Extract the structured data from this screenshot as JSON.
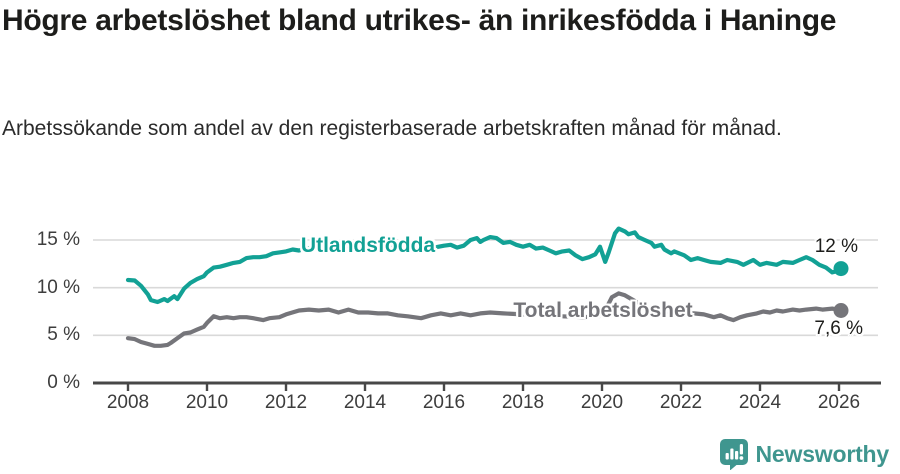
{
  "chart_data": {
    "type": "line",
    "title": "Högre arbetslöshet bland utrikes- än inrikesfödda i Haninge",
    "subtitle": "Arbetssökande som andel av den registerbaserade arbetskraften månad för månad.",
    "unit": "%",
    "grid": "horizontal",
    "legend_position": "inline-on-lines",
    "x_axis": {
      "ticks": [
        2008,
        2010,
        2012,
        2014,
        2016,
        2018,
        2020,
        2022,
        2024,
        2026
      ],
      "range": [
        2008,
        2026.3
      ]
    },
    "y_axis": {
      "ticks": [
        0,
        5,
        10,
        15
      ],
      "tick_suffix": " %",
      "range": [
        0,
        16.5
      ]
    },
    "axis_color": "#474747",
    "gridline_color": "#d9d9d9",
    "series": [
      {
        "name": "Utlandsfödda",
        "color": "#12a195",
        "end_label": "12 %",
        "last_value": 12.0,
        "points": [
          [
            2008.0,
            10.8
          ],
          [
            2008.17,
            10.75
          ],
          [
            2008.33,
            10.2
          ],
          [
            2008.5,
            9.3
          ],
          [
            2008.58,
            8.7
          ],
          [
            2008.75,
            8.5
          ],
          [
            2008.92,
            8.8
          ],
          [
            2009.0,
            8.6
          ],
          [
            2009.17,
            9.1
          ],
          [
            2009.25,
            8.8
          ],
          [
            2009.42,
            9.9
          ],
          [
            2009.58,
            10.5
          ],
          [
            2009.75,
            10.9
          ],
          [
            2009.92,
            11.2
          ],
          [
            2010.0,
            11.6
          ],
          [
            2010.17,
            12.1
          ],
          [
            2010.33,
            12.2
          ],
          [
            2010.5,
            12.4
          ],
          [
            2010.67,
            12.6
          ],
          [
            2010.83,
            12.7
          ],
          [
            2011.0,
            13.1
          ],
          [
            2011.17,
            13.2
          ],
          [
            2011.33,
            13.2
          ],
          [
            2011.5,
            13.3
          ],
          [
            2011.67,
            13.6
          ],
          [
            2011.83,
            13.7
          ],
          [
            2012.0,
            13.8
          ],
          [
            2012.17,
            14.0
          ],
          [
            2012.33,
            13.9
          ],
          [
            2012.5,
            14.1
          ],
          [
            2012.75,
            14.2
          ],
          [
            2013.0,
            14.4
          ],
          [
            2013.25,
            14.2
          ],
          [
            2013.5,
            14.4
          ],
          [
            2013.75,
            14.3
          ],
          [
            2014.0,
            14.5
          ],
          [
            2014.25,
            14.3
          ],
          [
            2014.5,
            14.4
          ],
          [
            2014.75,
            14.2
          ],
          [
            2015.0,
            14.3
          ],
          [
            2015.25,
            14.1
          ],
          [
            2015.5,
            14.3
          ],
          [
            2015.75,
            14.2
          ],
          [
            2016.0,
            14.4
          ],
          [
            2016.17,
            14.5
          ],
          [
            2016.33,
            14.2
          ],
          [
            2016.5,
            14.4
          ],
          [
            2016.67,
            15.0
          ],
          [
            2016.83,
            15.2
          ],
          [
            2016.92,
            14.8
          ],
          [
            2017.0,
            15.0
          ],
          [
            2017.17,
            15.3
          ],
          [
            2017.33,
            15.2
          ],
          [
            2017.5,
            14.7
          ],
          [
            2017.67,
            14.8
          ],
          [
            2017.83,
            14.5
          ],
          [
            2018.0,
            14.3
          ],
          [
            2018.17,
            14.5
          ],
          [
            2018.33,
            14.1
          ],
          [
            2018.5,
            14.2
          ],
          [
            2018.67,
            13.9
          ],
          [
            2018.83,
            13.6
          ],
          [
            2019.0,
            13.8
          ],
          [
            2019.17,
            13.9
          ],
          [
            2019.33,
            13.4
          ],
          [
            2019.5,
            13.0
          ],
          [
            2019.67,
            13.2
          ],
          [
            2019.83,
            13.5
          ],
          [
            2019.95,
            14.3
          ],
          [
            2020.08,
            12.7
          ],
          [
            2020.17,
            13.7
          ],
          [
            2020.33,
            15.7
          ],
          [
            2020.42,
            16.2
          ],
          [
            2020.58,
            15.9
          ],
          [
            2020.67,
            15.6
          ],
          [
            2020.83,
            15.8
          ],
          [
            2020.92,
            15.3
          ],
          [
            2021.08,
            15.0
          ],
          [
            2021.25,
            14.7
          ],
          [
            2021.33,
            14.3
          ],
          [
            2021.5,
            14.5
          ],
          [
            2021.58,
            14.0
          ],
          [
            2021.75,
            13.6
          ],
          [
            2021.83,
            13.8
          ],
          [
            2022.08,
            13.4
          ],
          [
            2022.25,
            12.9
          ],
          [
            2022.42,
            13.1
          ],
          [
            2022.58,
            12.9
          ],
          [
            2022.75,
            12.7
          ],
          [
            2023.0,
            12.6
          ],
          [
            2023.17,
            12.9
          ],
          [
            2023.42,
            12.7
          ],
          [
            2023.58,
            12.4
          ],
          [
            2023.83,
            12.9
          ],
          [
            2024.0,
            12.4
          ],
          [
            2024.17,
            12.6
          ],
          [
            2024.42,
            12.4
          ],
          [
            2024.58,
            12.7
          ],
          [
            2024.83,
            12.6
          ],
          [
            2025.0,
            12.9
          ],
          [
            2025.17,
            13.2
          ],
          [
            2025.33,
            12.9
          ],
          [
            2025.5,
            12.4
          ],
          [
            2025.67,
            12.1
          ],
          [
            2025.83,
            11.6
          ],
          [
            2025.92,
            11.7
          ],
          [
            2026.05,
            12.0
          ]
        ]
      },
      {
        "name": "Total arbetslöshet",
        "color": "#75757a",
        "end_label": "7,6 %",
        "last_value": 7.6,
        "points": [
          [
            2008.0,
            4.7
          ],
          [
            2008.17,
            4.6
          ],
          [
            2008.33,
            4.3
          ],
          [
            2008.5,
            4.1
          ],
          [
            2008.67,
            3.9
          ],
          [
            2008.83,
            3.9
          ],
          [
            2009.0,
            4.0
          ],
          [
            2009.08,
            4.2
          ],
          [
            2009.25,
            4.7
          ],
          [
            2009.42,
            5.2
          ],
          [
            2009.58,
            5.3
          ],
          [
            2009.75,
            5.6
          ],
          [
            2009.92,
            5.9
          ],
          [
            2010.0,
            6.3
          ],
          [
            2010.17,
            7.0
          ],
          [
            2010.33,
            6.8
          ],
          [
            2010.5,
            6.9
          ],
          [
            2010.67,
            6.8
          ],
          [
            2010.83,
            6.9
          ],
          [
            2011.0,
            6.9
          ],
          [
            2011.17,
            6.8
          ],
          [
            2011.42,
            6.6
          ],
          [
            2011.58,
            6.8
          ],
          [
            2011.83,
            6.9
          ],
          [
            2012.0,
            7.2
          ],
          [
            2012.33,
            7.6
          ],
          [
            2012.58,
            7.7
          ],
          [
            2012.83,
            7.6
          ],
          [
            2013.08,
            7.7
          ],
          [
            2013.33,
            7.4
          ],
          [
            2013.58,
            7.7
          ],
          [
            2013.83,
            7.4
          ],
          [
            2014.08,
            7.4
          ],
          [
            2014.33,
            7.3
          ],
          [
            2014.58,
            7.3
          ],
          [
            2014.83,
            7.1
          ],
          [
            2015.08,
            7.0
          ],
          [
            2015.42,
            6.8
          ],
          [
            2015.67,
            7.1
          ],
          [
            2015.92,
            7.3
          ],
          [
            2016.17,
            7.1
          ],
          [
            2016.42,
            7.3
          ],
          [
            2016.67,
            7.1
          ],
          [
            2016.92,
            7.3
          ],
          [
            2017.17,
            7.4
          ],
          [
            2017.5,
            7.3
          ],
          [
            2018.0,
            7.2
          ],
          [
            2018.5,
            7.1
          ],
          [
            2019.0,
            7.0
          ],
          [
            2019.5,
            6.9
          ],
          [
            2019.92,
            7.0
          ],
          [
            2020.08,
            7.6
          ],
          [
            2020.25,
            9.0
          ],
          [
            2020.42,
            9.4
          ],
          [
            2020.58,
            9.2
          ],
          [
            2020.83,
            8.6
          ],
          [
            2021.0,
            8.2
          ],
          [
            2021.25,
            7.8
          ],
          [
            2021.58,
            7.5
          ],
          [
            2022.0,
            7.4
          ],
          [
            2022.33,
            7.3
          ],
          [
            2022.58,
            7.2
          ],
          [
            2022.83,
            6.9
          ],
          [
            2023.0,
            7.1
          ],
          [
            2023.17,
            6.8
          ],
          [
            2023.33,
            6.6
          ],
          [
            2023.5,
            6.9
          ],
          [
            2023.67,
            7.1
          ],
          [
            2023.92,
            7.3
          ],
          [
            2024.08,
            7.5
          ],
          [
            2024.25,
            7.4
          ],
          [
            2024.42,
            7.6
          ],
          [
            2024.58,
            7.5
          ],
          [
            2024.83,
            7.7
          ],
          [
            2025.0,
            7.6
          ],
          [
            2025.17,
            7.7
          ],
          [
            2025.42,
            7.8
          ],
          [
            2025.58,
            7.7
          ],
          [
            2025.83,
            7.8
          ],
          [
            2026.05,
            7.6
          ]
        ]
      }
    ]
  },
  "footer": {
    "brand": "Newsworthy",
    "brand_color": "#3f968f"
  }
}
